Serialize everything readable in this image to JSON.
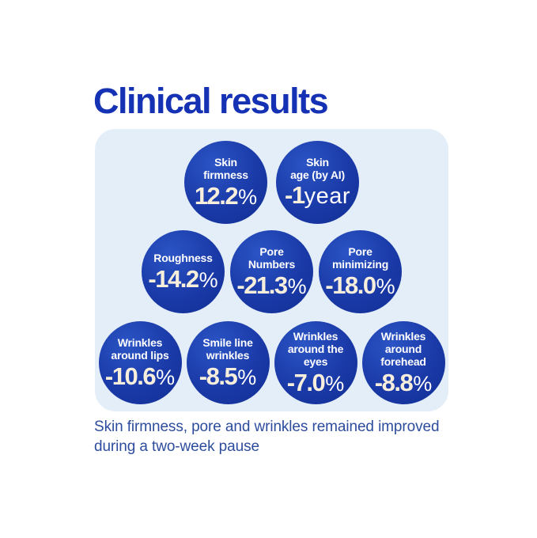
{
  "page": {
    "title": "Clinical results",
    "footer": "Skin firmness, pore and wrinkles remained improved during a two-week pause"
  },
  "colors": {
    "title_text": "#1632b4",
    "panel_bg": "#e4eef8",
    "bubble_blue": "#1a3aa8",
    "value_text": "#f7efdc",
    "label_text": "#ffffff",
    "footer_text": "#2d4c9d"
  },
  "panel": {
    "rows": [
      {
        "circles": [
          {
            "label": "Skin\nfirmness",
            "value": "12.2",
            "unit": "%"
          },
          {
            "label": "Skin\nage (by AI)",
            "value": "-1",
            "unit": "year"
          }
        ]
      },
      {
        "circles": [
          {
            "label": "Roughness",
            "value": "-14.2",
            "unit": "%"
          },
          {
            "label": "Pore\nNumbers",
            "value": "-21.3",
            "unit": "%"
          },
          {
            "label": "Pore\nminimizing",
            "value": "-18.0",
            "unit": "%"
          }
        ]
      },
      {
        "circles": [
          {
            "label": "Wrinkles\naround lips",
            "value": "-10.6",
            "unit": "%"
          },
          {
            "label": "Smile line\nwrinkles",
            "value": "-8.5",
            "unit": "%"
          },
          {
            "label": "Wrinkles\naround the\neyes",
            "value": "-7.0",
            "unit": "%"
          },
          {
            "label": "Wrinkles\naround\nforehead",
            "value": "-8.8",
            "unit": "%"
          }
        ]
      }
    ]
  },
  "chart_data": {
    "type": "table",
    "title": "Clinical results",
    "metrics": [
      {
        "label": "Skin firmness",
        "value": 12.2,
        "unit": "%"
      },
      {
        "label": "Skin age (by AI)",
        "value": -1,
        "unit": "year"
      },
      {
        "label": "Roughness",
        "value": -14.2,
        "unit": "%"
      },
      {
        "label": "Pore Numbers",
        "value": -21.3,
        "unit": "%"
      },
      {
        "label": "Pore minimizing",
        "value": -18.0,
        "unit": "%"
      },
      {
        "label": "Wrinkles around lips",
        "value": -10.6,
        "unit": "%"
      },
      {
        "label": "Smile line wrinkles",
        "value": -8.5,
        "unit": "%"
      },
      {
        "label": "Wrinkles around the eyes",
        "value": -7.0,
        "unit": "%"
      },
      {
        "label": "Wrinkles around forehead",
        "value": -8.8,
        "unit": "%"
      }
    ],
    "note": "Skin firmness, pore and wrinkles remained improved during a two-week pause",
    "legend_position": "none",
    "grid": false
  }
}
